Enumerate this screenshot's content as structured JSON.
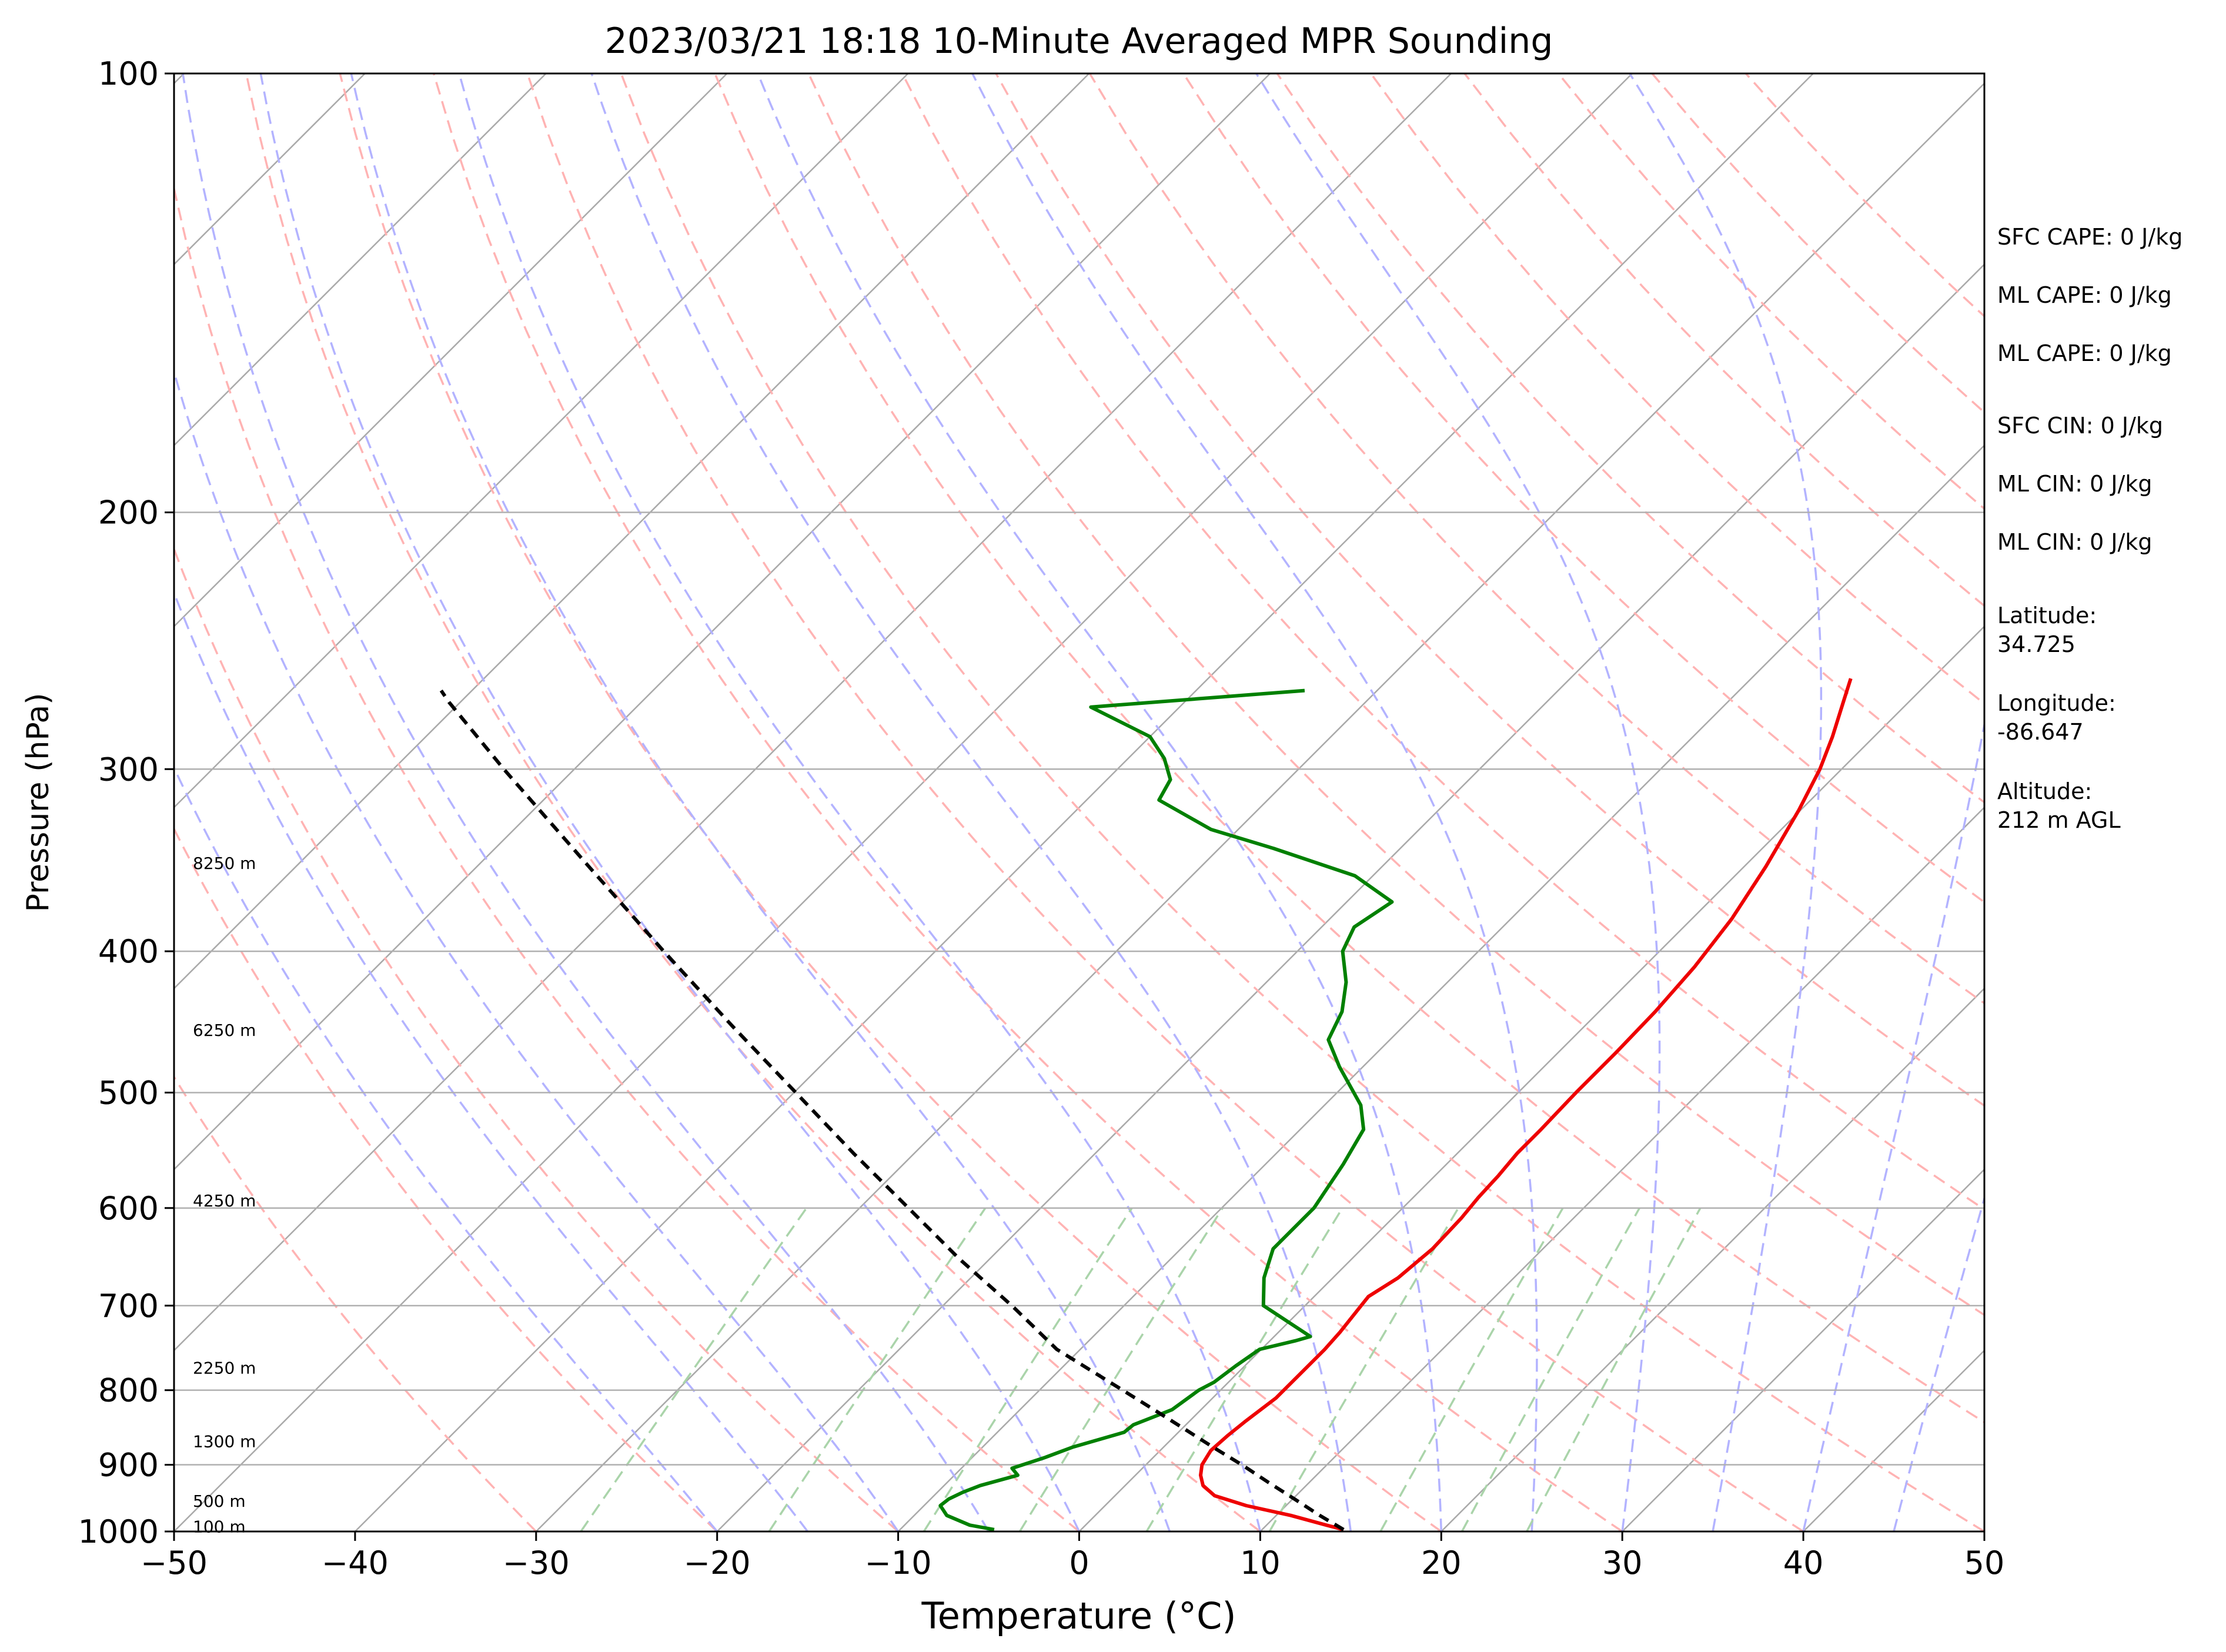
{
  "chart_data": {
    "type": "line",
    "title": "2023/03/21 18:18 10-Minute Averaged MPR Sounding",
    "xlabel": "Temperature (°C)",
    "ylabel": "Pressure (hPa)",
    "xlim": [
      -50,
      50
    ],
    "ylim": [
      1000,
      100
    ],
    "y_scale": "log",
    "x_ticks": [
      -50,
      -40,
      -30,
      -20,
      -10,
      0,
      10,
      20,
      30,
      40,
      50
    ],
    "x_tick_labels": [
      "−50",
      "−40",
      "−30",
      "−20",
      "−10",
      "0",
      "10",
      "20",
      "30",
      "40",
      "50"
    ],
    "y_ticks": [
      1000,
      900,
      800,
      700,
      600,
      500,
      400,
      300,
      200,
      100
    ],
    "y_tick_labels": [
      "1000",
      "900",
      "800",
      "700",
      "600",
      "500",
      "400",
      "300",
      "200",
      "100"
    ],
    "grid": true,
    "background_lines": {
      "isotherms_color": "#a9a9a9",
      "dry_adiabats_color": "#ffb3b3",
      "moist_adiabats_color": "#b3b3ff",
      "mixing_ratio_color": "#aad4aa"
    },
    "height_labels": [
      {
        "pressure": 348,
        "text": "8250 m"
      },
      {
        "pressure": 453,
        "text": "6250 m"
      },
      {
        "pressure": 593,
        "text": "4250 m"
      },
      {
        "pressure": 772,
        "text": "2250 m"
      },
      {
        "pressure": 867,
        "text": "1300 m"
      },
      {
        "pressure": 953,
        "text": "500 m"
      },
      {
        "pressure": 992,
        "text": "100 m"
      }
    ],
    "series": [
      {
        "role": "temperature",
        "color": "#ee0000",
        "points": [
          [
            997,
            14.5
          ],
          [
            990,
            13.3
          ],
          [
            975,
            10.8
          ],
          [
            960,
            7.8
          ],
          [
            945,
            5.5
          ],
          [
            930,
            4.3
          ],
          [
            915,
            3.6
          ],
          [
            900,
            3.1
          ],
          [
            880,
            2.8
          ],
          [
            860,
            2.9
          ],
          [
            840,
            3.1
          ],
          [
            810,
            3.5
          ],
          [
            780,
            3.5
          ],
          [
            750,
            3.5
          ],
          [
            730,
            3.4
          ],
          [
            700,
            3.1
          ],
          [
            690,
            3.0
          ],
          [
            670,
            3.6
          ],
          [
            640,
            3.9
          ],
          [
            610,
            3.8
          ],
          [
            590,
            3.6
          ],
          [
            570,
            3.5
          ],
          [
            550,
            3.3
          ],
          [
            530,
            3.3
          ],
          [
            500,
            3.2
          ],
          [
            470,
            3.2
          ],
          [
            440,
            3.1
          ],
          [
            410,
            2.8
          ],
          [
            380,
            2.2
          ],
          [
            350,
            1.2
          ],
          [
            320,
            -0.1
          ],
          [
            300,
            -1.2
          ],
          [
            285,
            -2.3
          ],
          [
            270,
            -3.6
          ],
          [
            260,
            -4.5
          ]
        ]
      },
      {
        "role": "dewpoint",
        "color": "#008000",
        "points": [
          [
            997,
            -4.8
          ],
          [
            990,
            -6.4
          ],
          [
            975,
            -8.2
          ],
          [
            960,
            -9.1
          ],
          [
            950,
            -9.0
          ],
          [
            940,
            -8.6
          ],
          [
            930,
            -8.0
          ],
          [
            915,
            -6.5
          ],
          [
            905,
            -7.2
          ],
          [
            890,
            -6.0
          ],
          [
            875,
            -5.0
          ],
          [
            855,
            -3.0
          ],
          [
            845,
            -2.9
          ],
          [
            825,
            -1.6
          ],
          [
            800,
            -1.2
          ],
          [
            790,
            -0.8
          ],
          [
            770,
            -0.5
          ],
          [
            750,
            -0.1
          ],
          [
            740,
            1.4
          ],
          [
            735,
            2.0
          ],
          [
            700,
            -2.3
          ],
          [
            670,
            -3.8
          ],
          [
            640,
            -4.9
          ],
          [
            600,
            -4.9
          ],
          [
            560,
            -5.7
          ],
          [
            530,
            -6.5
          ],
          [
            510,
            -8.0
          ],
          [
            480,
            -11.3
          ],
          [
            460,
            -13.4
          ],
          [
            440,
            -14.2
          ],
          [
            420,
            -15.6
          ],
          [
            400,
            -17.5
          ],
          [
            385,
            -18.2
          ],
          [
            370,
            -17.5
          ],
          [
            355,
            -21.0
          ],
          [
            340,
            -27.0
          ],
          [
            330,
            -31.5
          ],
          [
            315,
            -36.0
          ],
          [
            305,
            -36.5
          ],
          [
            295,
            -38.0
          ],
          [
            285,
            -40.0
          ],
          [
            272,
            -44.9
          ],
          [
            265,
            -34.0
          ]
        ]
      },
      {
        "role": "parcel",
        "color": "#000000",
        "dashed": true,
        "points": [
          [
            997,
            14.5
          ],
          [
            975,
            12.4
          ],
          [
            950,
            10.1
          ],
          [
            925,
            7.7
          ],
          [
            900,
            5.3
          ],
          [
            875,
            2.7
          ],
          [
            850,
            0.1
          ],
          [
            825,
            -2.6
          ],
          [
            800,
            -5.4
          ],
          [
            775,
            -8.3
          ],
          [
            750,
            -11.3
          ],
          [
            725,
            -13.7
          ],
          [
            700,
            -16.2
          ],
          [
            650,
            -21.7
          ],
          [
            600,
            -27.3
          ],
          [
            550,
            -33.4
          ],
          [
            500,
            -39.9
          ],
          [
            450,
            -47.1
          ],
          [
            400,
            -55.0
          ],
          [
            350,
            -63.8
          ],
          [
            300,
            -73.9
          ],
          [
            270,
            -80.6
          ],
          [
            265,
            -81.7
          ]
        ]
      }
    ],
    "side_annotations": [
      "SFC CAPE: 0 J/kg",
      "ML CAPE: 0 J/kg",
      "ML CAPE: 0 J/kg",
      "SFC CIN: 0 J/kg",
      "ML CIN: 0 J/kg",
      "ML CIN: 0 J/kg",
      "Latitude:",
      "34.725",
      "Longitude:",
      "-86.647",
      "Altitude:",
      "212 m AGL"
    ]
  }
}
